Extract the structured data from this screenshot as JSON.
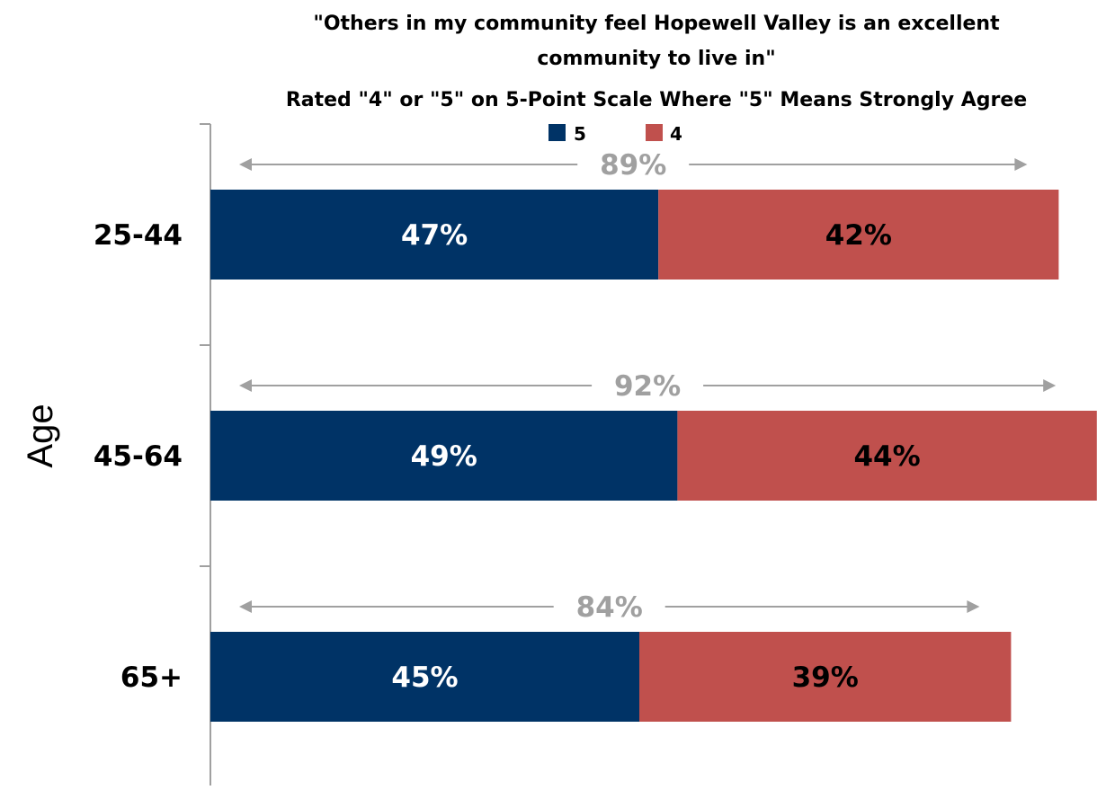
{
  "chart_data": {
    "type": "bar",
    "orientation": "horizontal",
    "stacked": true,
    "title_lines": [
      "\"Others in my community feel Hopewell Valley is an excellent",
      "community to live in\"",
      "Rated \"4\" or \"5\" on 5-Point Scale Where \"5\" Means Strongly Agree"
    ],
    "ylabel": "Age",
    "xlabel": "",
    "categories": [
      "25-44",
      "45-64",
      "65+"
    ],
    "series": [
      {
        "name": "5",
        "values": [
          47,
          49,
          45
        ],
        "labels": [
          "47%",
          "49%",
          "45%"
        ],
        "color": "#003366",
        "label_color": "#ffffff"
      },
      {
        "name": "4",
        "values": [
          42,
          44,
          39
        ],
        "labels": [
          "42%",
          "44%",
          "39%"
        ],
        "color": "#c0504d",
        "label_color": "#000000"
      }
    ],
    "totals": [
      89,
      92,
      84
    ],
    "total_labels": [
      "89%",
      "92%",
      "84%"
    ],
    "total_color": "#a0a0a0",
    "xlim": [
      0,
      93
    ],
    "legend_position": "top",
    "grid": false
  }
}
